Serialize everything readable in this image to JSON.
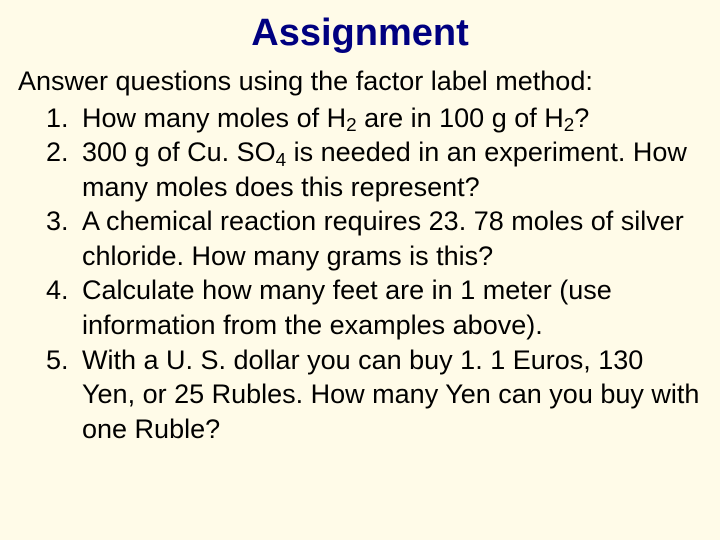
{
  "colors": {
    "background": "#fffbe8",
    "title": "#000080",
    "body_text": "#000000"
  },
  "typography": {
    "title_font": "Comic Sans MS",
    "title_size_pt": 38,
    "title_weight": "bold",
    "body_font": "Arial",
    "body_size_pt": 27,
    "line_height": 1.28
  },
  "title": "Assignment",
  "intro": "Answer questions using the factor label method:",
  "questions": [
    "How many moles of H<sub>2</sub> are in 100 g of H<sub>2</sub>?",
    "300 g of Cu. SO<sub>4</sub> is needed in an experiment. How many moles does this represent?",
    "A chemical reaction requires 23. 78 moles of silver chloride.  How many grams is this?",
    "Calculate how many feet are in 1 meter (use information from the examples above).",
    "With a U. S. dollar you can buy 1. 1 Euros, 130 Yen, or 25 Rubles.  How many Yen can you buy with one Ruble?"
  ]
}
